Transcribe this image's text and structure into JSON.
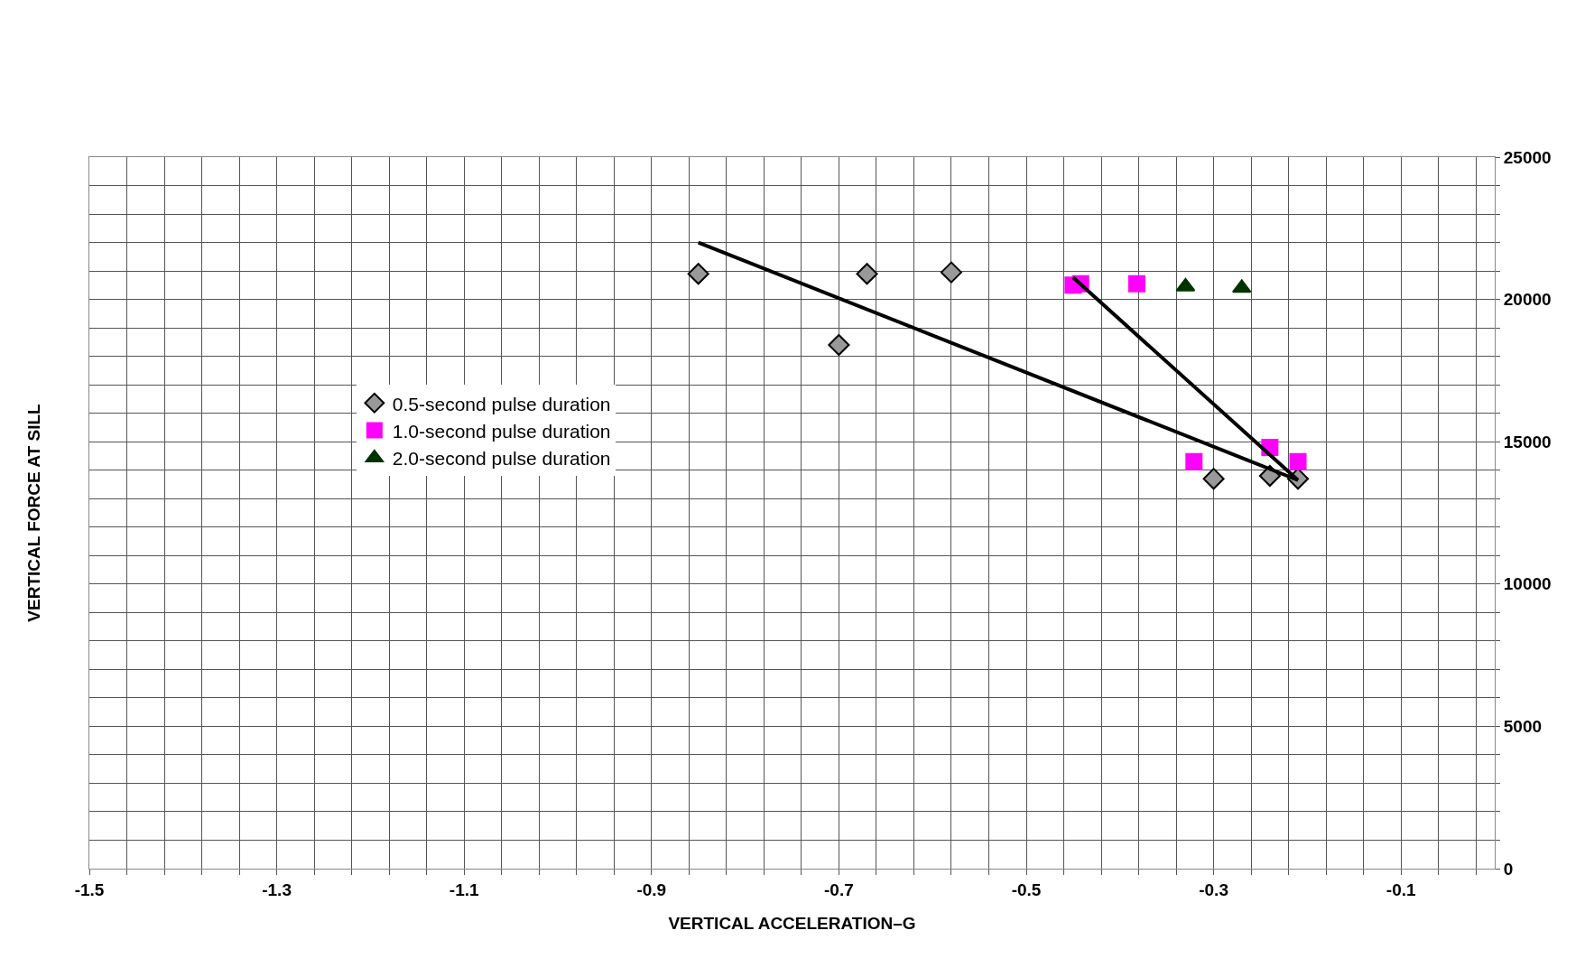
{
  "chart_data": {
    "type": "scatter",
    "xlabel": "VERTICAL ACCELERATION–G",
    "ylabel": "VERTICAL FORCE AT SILL",
    "xlim": [
      -1.5,
      0
    ],
    "ylim": [
      0,
      25000
    ],
    "xticks": [
      -1.5,
      {
        "value": -1.46,
        "label": null
      },
      {
        "value": -1.42,
        "label": null
      },
      {
        "value": -1.38,
        "label": null
      },
      {
        "value": -1.34,
        "label": null
      },
      -1.3,
      {
        "value": -1.26,
        "label": null
      },
      {
        "value": -1.22,
        "label": null
      },
      {
        "value": -1.18,
        "label": null
      },
      {
        "value": -1.14,
        "label": null
      },
      -1.1,
      {
        "value": -1.06,
        "label": null
      },
      {
        "value": -1.02,
        "label": null
      },
      {
        "value": -0.98,
        "label": null
      },
      {
        "value": -0.94,
        "label": null
      },
      -0.9,
      {
        "value": -0.86,
        "label": null
      },
      {
        "value": -0.82,
        "label": null
      },
      {
        "value": -0.78,
        "label": null
      },
      {
        "value": -0.74,
        "label": null
      },
      -0.7,
      {
        "value": -0.66,
        "label": null
      },
      {
        "value": -0.62,
        "label": null
      },
      {
        "value": -0.58,
        "label": null
      },
      {
        "value": -0.54,
        "label": null
      },
      -0.5,
      {
        "value": -0.46,
        "label": null
      },
      {
        "value": -0.42,
        "label": null
      },
      {
        "value": -0.38,
        "label": null
      },
      {
        "value": -0.34,
        "label": null
      },
      -0.3,
      {
        "value": -0.26,
        "label": null
      },
      {
        "value": -0.22,
        "label": null
      },
      {
        "value": -0.18,
        "label": null
      },
      {
        "value": -0.14,
        "label": null
      },
      -0.1,
      {
        "value": -0.06,
        "label": null
      },
      {
        "value": -0.02,
        "label": null
      }
    ],
    "yticks": [
      0,
      {
        "value": 1000,
        "label": null
      },
      {
        "value": 2000,
        "label": null
      },
      {
        "value": 3000,
        "label": null
      },
      {
        "value": 4000,
        "label": null
      },
      5000,
      {
        "value": 6000,
        "label": null
      },
      {
        "value": 7000,
        "label": null
      },
      {
        "value": 8000,
        "label": null
      },
      {
        "value": 9000,
        "label": null
      },
      10000,
      {
        "value": 11000,
        "label": null
      },
      {
        "value": 12000,
        "label": null
      },
      {
        "value": 13000,
        "label": null
      },
      {
        "value": 14000,
        "label": null
      },
      15000,
      {
        "value": 16000,
        "label": null
      },
      {
        "value": 17000,
        "label": null
      },
      {
        "value": 18000,
        "label": null
      },
      {
        "value": 19000,
        "label": null
      },
      20000,
      {
        "value": 21000,
        "label": null
      },
      {
        "value": 22000,
        "label": null
      },
      {
        "value": 23000,
        "label": null
      },
      {
        "value": 24000,
        "label": null
      },
      25000
    ],
    "grid": true,
    "legend": "left",
    "series": [
      {
        "name": "0.5-second pulse duration",
        "color": "#999999",
        "marker": "diamond",
        "x": [
          -0.85,
          -0.67,
          -0.58,
          -0.7,
          -0.3,
          -0.24,
          -0.21
        ],
        "values": [
          20900,
          20900,
          20950,
          18400,
          13700,
          13800,
          13700
        ]
      },
      {
        "name": "1.0-second pulse duration",
        "color": "#ff00ff",
        "marker": "square",
        "x": [
          -0.45,
          -0.442,
          -0.382,
          -0.321,
          -0.24,
          -0.21
        ],
        "values": [
          20500,
          20550,
          20550,
          14300,
          14800,
          14300
        ]
      },
      {
        "name": "2.0-second pulse duration",
        "color": "#003300",
        "marker": "triangle",
        "x": [
          -0.33,
          -0.27
        ],
        "values": [
          20450,
          20400
        ]
      },
      {
        "type": "line",
        "color": "#000000",
        "marker": "none",
        "line_style": "solid",
        "x": [
          -0.85,
          -0.21
        ],
        "values": [
          22000,
          13650
        ]
      },
      {
        "type": "line",
        "color": "#000000",
        "marker": "none",
        "line_style": "solid",
        "x": [
          -0.45,
          -0.21
        ],
        "values": [
          20770,
          13650
        ]
      }
    ]
  }
}
